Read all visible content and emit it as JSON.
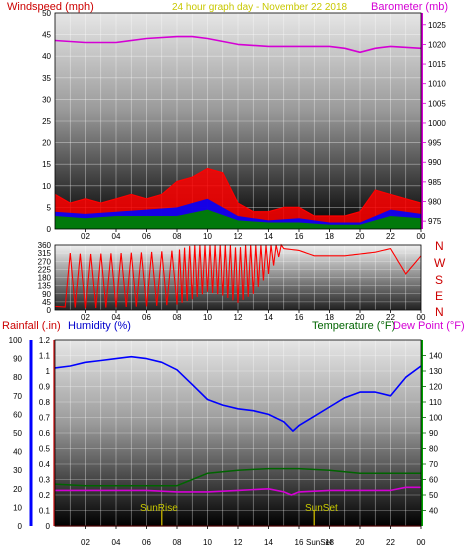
{
  "header": {
    "windspeed_label": "Windspeed (mph)",
    "graph_title": "24 hour graph day - November 22 2018",
    "barometer_label": "Barometer (mb)"
  },
  "colors": {
    "wind_red": "#ff0000",
    "wind_blue": "#0000ff",
    "wind_green": "#008000",
    "barometer": "#d400d4",
    "humidity": "#0000ff",
    "temperature": "#006400",
    "dewpoint": "#d400d4",
    "title_yellow": "#c8c800",
    "sun_marker": "#b0a000"
  },
  "compass": [
    "N",
    "W",
    "S",
    "E",
    "N"
  ],
  "bottom_header": {
    "rainfall_label": "Rainfall (.in)",
    "humidity_label": "Humidity (%)",
    "temperature_label": "Temperature (°F)",
    "dewpoint_label": "Dew Point (°F)"
  },
  "sun": {
    "sunrise_label": "SunRise",
    "sunset_label": "SunSet",
    "sunset_axis_label": "SunSet"
  },
  "chart_data": [
    {
      "type": "line",
      "x_ticks": [
        "02",
        "04",
        "06",
        "08",
        "10",
        "12",
        "14",
        "16",
        "18",
        "20",
        "22",
        "00"
      ],
      "left_axis": {
        "ylim": [
          0,
          50
        ],
        "ticks": [
          0,
          5,
          10,
          15,
          20,
          25,
          30,
          35,
          40,
          45,
          50
        ]
      },
      "right_axis": {
        "ylim": [
          973,
          1028
        ],
        "ticks": [
          975,
          980,
          985,
          990,
          995,
          1000,
          1005,
          1010,
          1015,
          1020,
          1025
        ]
      },
      "series": [
        {
          "axis": "right",
          "x": [
            0,
            2,
            4,
            6,
            8,
            9,
            10,
            12,
            14,
            16,
            18,
            19,
            20,
            21,
            22,
            24
          ],
          "values": [
            1021,
            1020.5,
            1020.5,
            1021.5,
            1022,
            1022,
            1021.5,
            1020,
            1019.5,
            1019.5,
            1019.5,
            1019,
            1018,
            1019,
            1019.5,
            1019
          ]
        },
        {
          "axis": "left",
          "x": [
            0,
            1,
            2,
            3,
            4,
            5,
            6,
            7,
            8,
            9,
            10,
            11,
            12,
            13,
            14,
            15,
            16,
            17,
            18,
            19,
            20,
            21,
            22,
            23,
            24
          ],
          "values": [
            8,
            6,
            7,
            6,
            7,
            8,
            7,
            8,
            11,
            12,
            14,
            13,
            6,
            4,
            4,
            5,
            5,
            3,
            3,
            3,
            4,
            9,
            8,
            7,
            6
          ]
        },
        {
          "axis": "left",
          "x": [
            0,
            2,
            4,
            6,
            8,
            10,
            12,
            14,
            16,
            18,
            20,
            22,
            24
          ],
          "values": [
            4,
            3.5,
            4,
            4.5,
            5,
            7,
            3,
            2,
            2.5,
            1.5,
            1.5,
            4.5,
            3.5
          ]
        },
        {
          "axis": "left",
          "x": [
            0,
            2,
            4,
            6,
            8,
            10,
            12,
            14,
            16,
            18,
            20,
            22,
            24
          ],
          "values": [
            3,
            2.5,
            3,
            3,
            3,
            4.5,
            2,
            1.5,
            1.5,
            1,
            1,
            3,
            2.5
          ]
        }
      ]
    },
    {
      "type": "line",
      "x_ticks": [
        "02",
        "04",
        "06",
        "08",
        "10",
        "12",
        "14",
        "16",
        "18",
        "20",
        "22",
        "00"
      ],
      "left_axis": {
        "ylim": [
          0,
          360
        ],
        "ticks": [
          0,
          45,
          90,
          135,
          180,
          225,
          270,
          315,
          360
        ]
      },
      "series": [
        {
          "x": [
            0,
            2,
            4,
            6,
            8,
            9,
            10,
            11,
            12,
            13,
            14,
            15,
            16,
            17,
            18,
            19,
            20,
            21,
            22,
            23,
            24
          ],
          "values": [
            20,
            10,
            15,
            20,
            30,
            60,
            100,
            80,
            40,
            90,
            200,
            340,
            330,
            300,
            300,
            300,
            310,
            320,
            340,
            200,
            300
          ]
        }
      ]
    },
    {
      "type": "line",
      "x_ticks": [
        "02",
        "04",
        "06",
        "08",
        "10",
        "12",
        "14",
        "16",
        "18",
        "20",
        "22",
        "00"
      ],
      "left_axis": {
        "ylim": [
          0,
          1.2
        ],
        "ticks": [
          0,
          0.1,
          0.2,
          0.3,
          0.4,
          0.5,
          0.6,
          0.7,
          0.8,
          0.9,
          1,
          1.1,
          1.2
        ]
      },
      "humidity_axis": {
        "ylim": [
          0,
          100
        ],
        "ticks": [
          0,
          10,
          20,
          30,
          40,
          50,
          60,
          70,
          80,
          90,
          100
        ]
      },
      "right_axis": {
        "ylim": [
          30,
          150
        ],
        "ticks": [
          40,
          50,
          60,
          70,
          80,
          90,
          100,
          110,
          120,
          130,
          140
        ]
      },
      "sunrise_hour": 7,
      "sunset_hour": 17,
      "series": [
        {
          "axis": "humidity",
          "x": [
            0,
            1,
            2,
            3,
            4,
            5,
            6,
            7,
            8,
            9,
            10,
            11,
            12,
            13,
            14,
            15,
            15.6,
            16,
            17,
            18,
            19,
            20,
            21,
            22,
            23,
            24
          ],
          "values": [
            85,
            86,
            88,
            89,
            90,
            91,
            90,
            88,
            84,
            76,
            68,
            65,
            63,
            62,
            60,
            56,
            51,
            54,
            59,
            64,
            69,
            72,
            72,
            70,
            80,
            86
          ]
        },
        {
          "axis": "right",
          "x": [
            0,
            2,
            4,
            6,
            8,
            9,
            10,
            12,
            14,
            16,
            18,
            20,
            22,
            24
          ],
          "values": [
            57,
            56,
            56,
            56,
            56,
            60,
            64,
            66,
            67,
            67,
            66,
            64,
            64,
            64
          ]
        },
        {
          "axis": "right",
          "x": [
            0,
            2,
            4,
            6,
            8,
            10,
            12,
            14,
            15,
            15.5,
            16,
            18,
            20,
            22,
            23,
            24
          ],
          "values": [
            53,
            53,
            53,
            53,
            52,
            52,
            53,
            54,
            52,
            50,
            52,
            53,
            53,
            53,
            55,
            55
          ]
        },
        {
          "axis": "left",
          "x": [
            0,
            24
          ],
          "values": [
            0,
            0
          ]
        }
      ]
    }
  ]
}
